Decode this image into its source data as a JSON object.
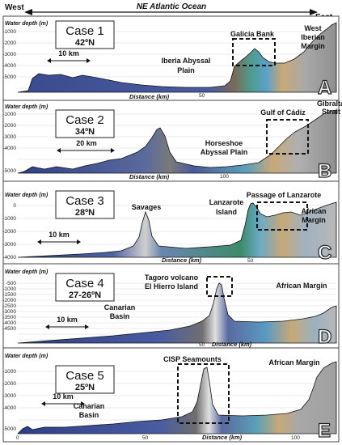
{
  "header": {
    "west": "West",
    "ocean": "NE Atlantic Ocean",
    "east": "East"
  },
  "panels": [
    {
      "letter": "A",
      "case": "Case 1",
      "lat": "42ºN",
      "ylabel": "Water depth (m)",
      "yticks": [
        "-1000",
        "-2000",
        "-3000",
        "-4000",
        "-5000"
      ],
      "xlabel": "Distance (km)",
      "xticks": [
        "50"
      ],
      "scale": "10 km",
      "features": [
        "Galicia Bank",
        "West",
        "Iberian",
        "Margin",
        "Iberia Abyssal",
        "Plain"
      ]
    },
    {
      "letter": "B",
      "case": "Case 2",
      "lat": "34ºN",
      "ylabel": "Water depth (m)",
      "yticks": [
        "-1000",
        "-2000",
        "-3000",
        "-4000",
        "-5000"
      ],
      "xlabel": "Distance (km)",
      "xticks": [
        "100"
      ],
      "scale": "20 km",
      "features": [
        "Gibraltar",
        "Strait",
        "Gulf of Cádiz",
        "Horseshoe",
        "Abyssal Plain"
      ]
    },
    {
      "letter": "C",
      "case": "Case 3",
      "lat": "28ºN",
      "ylabel": "Water depth (m)",
      "yticks": [
        "0",
        "-1000",
        "-2000",
        "-3000",
        "-4000"
      ],
      "xlabel": "Distance (km)",
      "xticks": [
        "50"
      ],
      "scale": "10 km",
      "features": [
        "Passage of Lanzarote",
        "Savages",
        "Lanzarote",
        "Island",
        "African",
        "Margin"
      ]
    },
    {
      "letter": "D",
      "case": "Case 4",
      "lat": "27-26ºN",
      "ylabel": "Water depth (m)",
      "yticks": [
        "-500",
        "-1000",
        "-1500",
        "-2000",
        "-2500",
        "-3000",
        "-3500",
        "-4000",
        "-4500"
      ],
      "xlabel": "Distance (km)",
      "xticks": [
        "50"
      ],
      "scale": "10 km",
      "features": [
        "Tagoro volcano",
        "El Hierro Island",
        "African Margin",
        "Canarian",
        "Basin"
      ]
    },
    {
      "letter": "E",
      "case": "Case 5",
      "lat": "25ºN",
      "ylabel": "Water depth (m)",
      "yticks": [
        "-1000",
        "-2000",
        "-3000",
        "-4000",
        "-5000"
      ],
      "xlabel": "Distance (km)",
      "xticks": [
        "0",
        "50",
        "100"
      ],
      "scale": "10 km",
      "features": [
        "CISP Seamounts",
        "African Margin",
        "Canarian",
        "Basin"
      ]
    }
  ]
}
